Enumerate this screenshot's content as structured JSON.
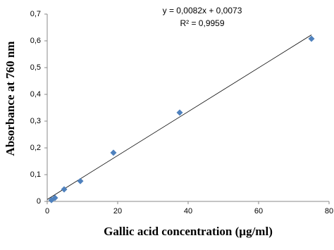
{
  "chart_data": {
    "type": "scatter",
    "x_label": "Gallic acid concentration (µg/ml)",
    "y_label": "Absorbance at 760 nm",
    "annotations": [
      "y = 0,0082x + 0,0073",
      "R² = 0,9959"
    ],
    "trendline": {
      "slope": 0.0082,
      "intercept": 0.0073,
      "color": "#000000"
    },
    "series": [
      {
        "name": "Gallic acid",
        "color": "#4f81bd",
        "x": [
          1.2,
          2.2,
          4.8,
          9.4,
          18.8,
          37.6,
          75
        ],
        "values": [
          0.005,
          0.013,
          0.045,
          0.076,
          0.182,
          0.332,
          0.608
        ]
      }
    ],
    "xlim": [
      0,
      80
    ],
    "xticks": [
      0,
      20,
      40,
      60,
      80
    ],
    "ylim": [
      0,
      0.7
    ],
    "yticks": [
      0,
      {
        "value": 0.1,
        "label": "0,1"
      },
      {
        "value": 0.2,
        "label": "0,2"
      },
      {
        "value": 0.3,
        "label": "0,3"
      },
      {
        "value": 0.4,
        "label": "0,4"
      },
      {
        "value": 0.5,
        "label": "0,5"
      },
      {
        "value": 0.6,
        "label": "0,6"
      },
      {
        "value": 0.7,
        "label": "0,7"
      }
    ],
    "grid": false,
    "legend": false
  }
}
